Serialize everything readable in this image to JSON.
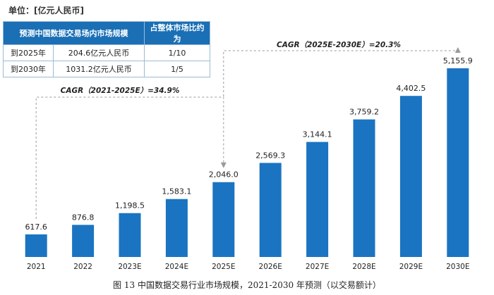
{
  "unit_label": "单位：[亿元人民币]",
  "info_table": {
    "headers": [
      "预测中国数据交易场内市场规模",
      "占整体市场比约为"
    ],
    "rows": [
      [
        "到2025年",
        "204.6亿元人民币",
        "1/10"
      ],
      [
        "到2030年",
        "1031.2亿元人民币",
        "1/5"
      ]
    ]
  },
  "annotations": {
    "cagr_1": "CAGR（2021-2025E）=34.9%",
    "cagr_2": "CAGR（2025E-2030E）=20.3%"
  },
  "caption": "图 13  中国数据交易行业市场规模，2021-2030 年预测（以交易额计）",
  "colors": {
    "bar": "#1a74c1",
    "table_header": "#1a6fb5",
    "guide": "#999999"
  },
  "chart_data": {
    "type": "bar",
    "categories": [
      "2021",
      "2022",
      "2023E",
      "2024E",
      "2025E",
      "2026E",
      "2027E",
      "2028E",
      "2029E",
      "2030E"
    ],
    "values": [
      617.6,
      876.8,
      1198.5,
      1583.1,
      2046.0,
      2569.3,
      3144.1,
      3759.2,
      4402.5,
      5155.9
    ],
    "value_labels": [
      "617.6",
      "876.8",
      "1,198.5",
      "1,583.1",
      "2,046.0",
      "2,569.3",
      "3,144.1",
      "3,759.2",
      "4,402.5",
      "5,155.9"
    ],
    "ylim": [
      0,
      5155.9
    ],
    "grid": false,
    "title": "",
    "xlabel": "",
    "ylabel": ""
  }
}
